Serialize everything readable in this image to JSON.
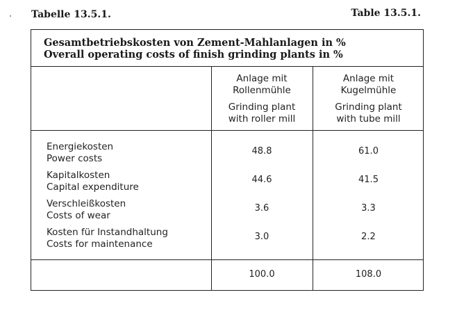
{
  "header": {
    "label_de": "Tabelle 13.5.1.",
    "label_en": "Table 13.5.1."
  },
  "table": {
    "title_de": "Gesamtbetriebskosten von Zement-Mahlanlagen in %",
    "title_en": "Overall operating costs of finish grinding plants in %",
    "columns": [
      {
        "de_line1": "Anlage mit",
        "de_line2": "Rollenmühle",
        "en_line1": "Grinding plant",
        "en_line2": "with roller mill"
      },
      {
        "de_line1": "Anlage mit",
        "de_line2": "Kugelmühle",
        "en_line1": "Grinding plant",
        "en_line2": "with tube mill"
      }
    ],
    "rows": [
      {
        "de": "Energiekosten",
        "en": "Power costs",
        "roller": "48.8",
        "tube": "61.0"
      },
      {
        "de": "Kapitalkosten",
        "en": "Capital expenditure",
        "roller": "44.6",
        "tube": "41.5"
      },
      {
        "de": "Verschleißkosten",
        "en": "Costs of wear",
        "roller": "3.6",
        "tube": "3.3"
      },
      {
        "de": "Kosten für Instandhaltung",
        "en": "Costs for maintenance",
        "roller": "3.0",
        "tube": "2.2"
      }
    ],
    "totals": {
      "roller": "100.0",
      "tube": "108.0"
    }
  }
}
